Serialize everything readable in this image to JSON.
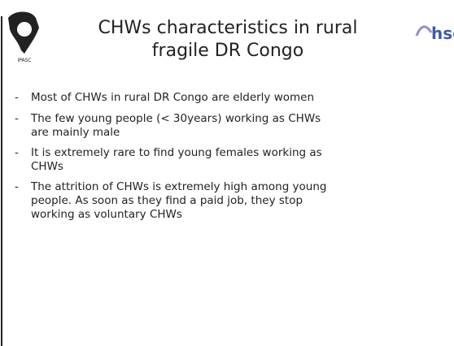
{
  "header": {
    "title_line1": "CHWs characteristics in rural",
    "title_line2": "fragile DR Congo",
    "logo_left_text": "IPASC",
    "logo_right_text": "hsg"
  },
  "bullets": [
    {
      "marker": "-",
      "lines": [
        "Most of CHWs in rural DR Congo are elderly women"
      ]
    },
    {
      "marker": "-",
      "lines": [
        "The few young people (< 30years) working as CHWs",
        "are mainly male"
      ]
    },
    {
      "marker": "-",
      "lines": [
        "It is extremely rare to find young females working as",
        "CHWs"
      ]
    },
    {
      "marker": "-",
      "lines": [
        "The attrition of CHWs is extremely high among young",
        "people. As soon as they find a paid job, they stop",
        "working as voluntary CHWs"
      ]
    }
  ]
}
